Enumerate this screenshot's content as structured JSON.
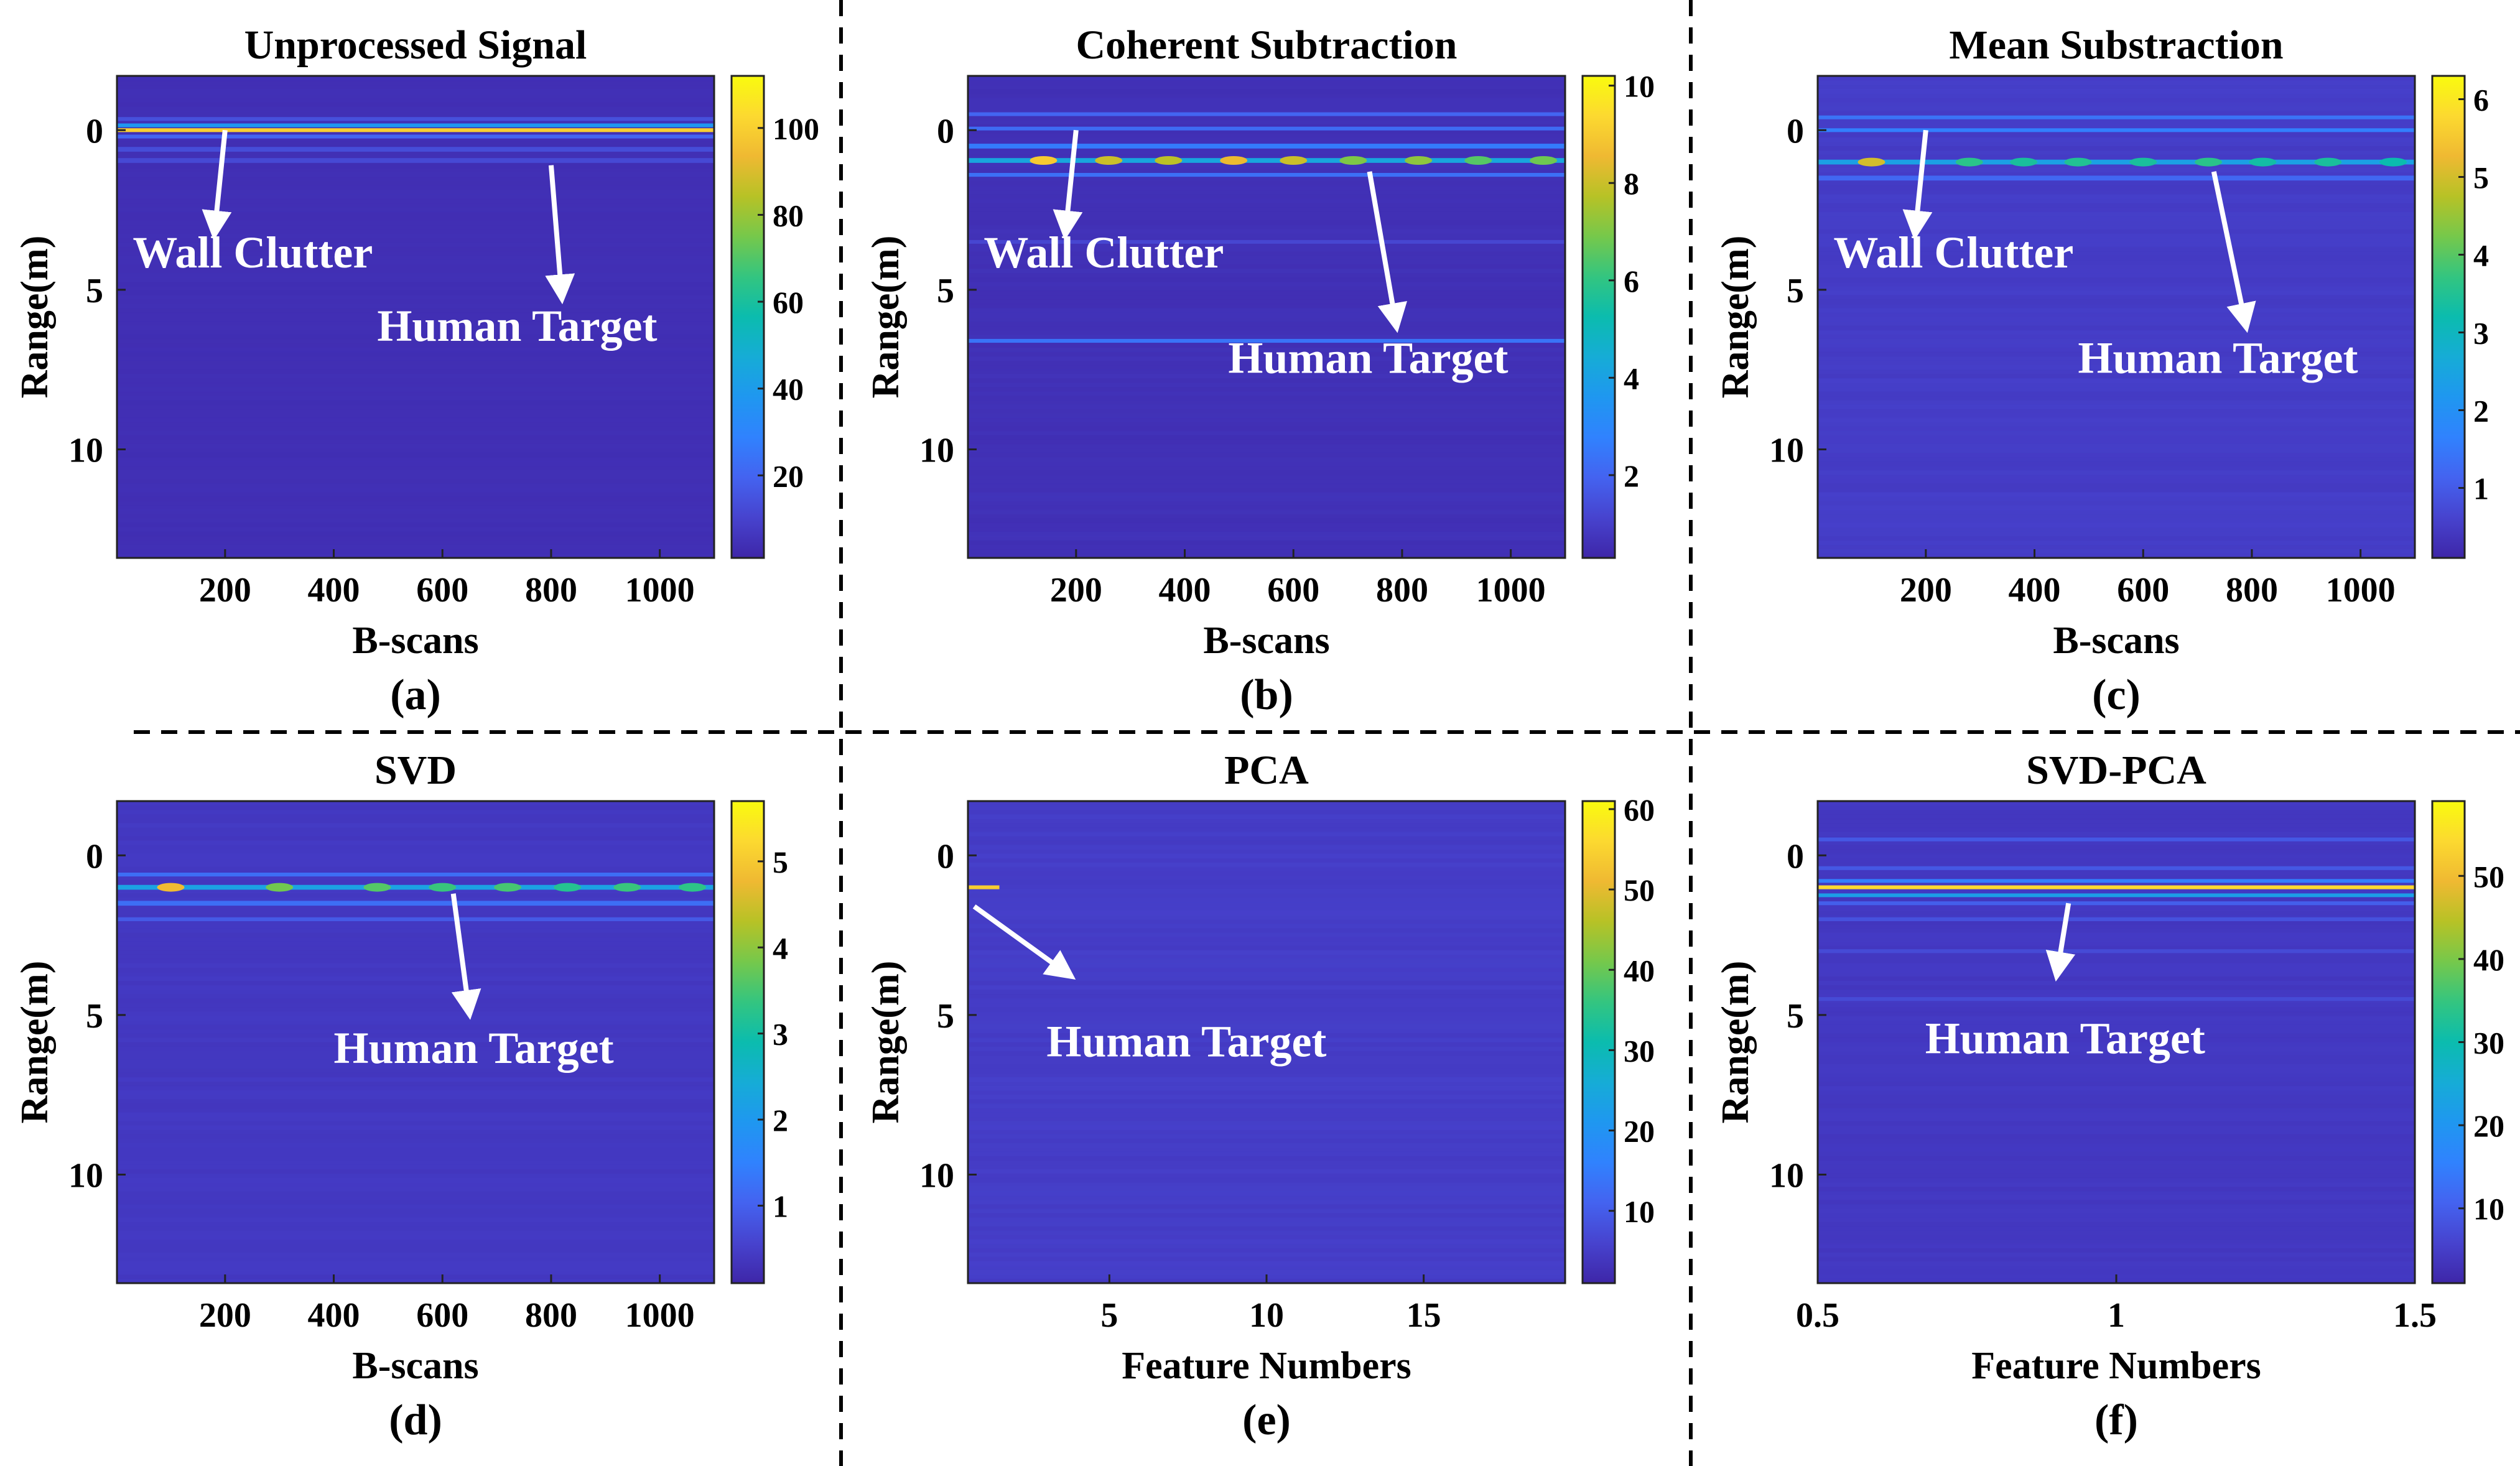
{
  "figure": {
    "separators": {
      "style": "dashed",
      "color": "#000000"
    }
  },
  "colormap": {
    "name": "parula",
    "stops": [
      "#3e26a8",
      "#4743ce",
      "#4463f0",
      "#3082fe",
      "#1f97f0",
      "#16acd6",
      "#0bbcae",
      "#33c580",
      "#76c84b",
      "#b7c226",
      "#efb932",
      "#fcd930",
      "#f9fb0e"
    ]
  },
  "chart_data": [
    {
      "id": "a",
      "panel_label": "(a)",
      "type": "heatmap",
      "title": "Unprocessed Signal",
      "xlabel": "B-scans",
      "ylabel": "Range(m)",
      "xlim": [
        1,
        1100
      ],
      "ylim": [
        -1.7,
        13.4
      ],
      "y_reversed": true,
      "xticks": [
        200,
        400,
        600,
        800,
        1000
      ],
      "yticks": [
        0,
        5,
        10
      ],
      "clim": [
        1,
        112
      ],
      "cbar_ticks": [
        20,
        40,
        60,
        80,
        100
      ],
      "background_value": 4,
      "bands": [
        {
          "range_m": -0.35,
          "value": 14,
          "thickness_m": 0.12
        },
        {
          "range_m": -0.15,
          "value": 38,
          "thickness_m": 0.12
        },
        {
          "range_m": 0.0,
          "value": 100,
          "thickness_m": 0.12
        },
        {
          "range_m": 0.2,
          "value": 20,
          "thickness_m": 0.12
        },
        {
          "range_m": 0.6,
          "value": 13,
          "thickness_m": 0.15
        },
        {
          "range_m": 0.95,
          "value": 12,
          "thickness_m": 0.15
        }
      ],
      "annotations": [
        {
          "text": "Wall Clutter",
          "tail": [
            200,
            0.0
          ],
          "head": [
            180,
            3.3
          ],
          "label_at": [
            30,
            4.3
          ]
        },
        {
          "text": "Human Target",
          "tail": [
            800,
            1.1
          ],
          "head": [
            820,
            5.3
          ],
          "label_at": [
            480,
            6.6
          ]
        }
      ]
    },
    {
      "id": "b",
      "panel_label": "(b)",
      "type": "heatmap",
      "title": "Coherent Subtraction",
      "xlabel": "B-scans",
      "ylabel": "Range(m)",
      "xlim": [
        1,
        1100
      ],
      "ylim": [
        -1.7,
        13.4
      ],
      "y_reversed": true,
      "xticks": [
        200,
        400,
        600,
        800,
        1000
      ],
      "yticks": [
        0,
        5,
        10
      ],
      "clim": [
        0.3,
        10.2
      ],
      "cbar_ticks": [
        2,
        4,
        6,
        8,
        10
      ],
      "background_value": 0.6,
      "bands": [
        {
          "range_m": -0.5,
          "value": 2.0,
          "thickness_m": 0.1
        },
        {
          "range_m": -0.05,
          "value": 2.2,
          "thickness_m": 0.1
        },
        {
          "range_m": 0.5,
          "value": 2.6,
          "thickness_m": 0.15
        },
        {
          "range_m": 0.95,
          "value": 4.2,
          "thickness_m": 0.15
        },
        {
          "range_m": 1.4,
          "value": 2.3,
          "thickness_m": 0.12
        },
        {
          "range_m": 3.5,
          "value": 1.2,
          "thickness_m": 0.08
        },
        {
          "range_m": 6.6,
          "value": 2.4,
          "thickness_m": 0.12
        }
      ],
      "hotspots": [
        {
          "x": 140,
          "range_m": 0.95,
          "value": 9.0
        },
        {
          "x": 260,
          "range_m": 0.95,
          "value": 8.0
        },
        {
          "x": 370,
          "range_m": 0.95,
          "value": 7.8
        },
        {
          "x": 490,
          "range_m": 0.95,
          "value": 8.5
        },
        {
          "x": 600,
          "range_m": 0.95,
          "value": 8.0
        },
        {
          "x": 710,
          "range_m": 0.95,
          "value": 7.0
        },
        {
          "x": 830,
          "range_m": 0.95,
          "value": 7.2
        },
        {
          "x": 940,
          "range_m": 0.95,
          "value": 6.5
        },
        {
          "x": 1060,
          "range_m": 0.95,
          "value": 6.8
        }
      ],
      "annotations": [
        {
          "text": "Wall Clutter",
          "tail": [
            200,
            0.0
          ],
          "head": [
            180,
            3.3
          ],
          "label_at": [
            30,
            4.3
          ]
        },
        {
          "text": "Human Target",
          "tail": [
            740,
            1.3
          ],
          "head": [
            790,
            6.2
          ],
          "label_at": [
            480,
            7.6
          ]
        }
      ]
    },
    {
      "id": "c",
      "panel_label": "(c)",
      "type": "heatmap",
      "title": "Mean Substraction",
      "xlabel": "B-scans",
      "ylabel": "Range(m)",
      "xlim": [
        1,
        1100
      ],
      "ylim": [
        -1.7,
        13.4
      ],
      "y_reversed": true,
      "xticks": [
        200,
        400,
        600,
        800,
        1000
      ],
      "yticks": [
        0,
        5,
        10
      ],
      "clim": [
        0.1,
        6.3
      ],
      "cbar_ticks": [
        1,
        2,
        3,
        4,
        5,
        6
      ],
      "background_value": 0.5,
      "bands": [
        {
          "range_m": -0.4,
          "value": 1.4,
          "thickness_m": 0.1
        },
        {
          "range_m": 0.0,
          "value": 1.6,
          "thickness_m": 0.1
        },
        {
          "range_m": 1.0,
          "value": 2.4,
          "thickness_m": 0.15
        },
        {
          "range_m": 1.5,
          "value": 1.2,
          "thickness_m": 0.15
        }
      ],
      "hotspots": [
        {
          "x": 100,
          "range_m": 1.0,
          "value": 5.0
        },
        {
          "x": 280,
          "range_m": 1.0,
          "value": 3.6
        },
        {
          "x": 380,
          "range_m": 1.0,
          "value": 3.4
        },
        {
          "x": 480,
          "range_m": 1.0,
          "value": 3.5
        },
        {
          "x": 600,
          "range_m": 1.0,
          "value": 3.4
        },
        {
          "x": 720,
          "range_m": 1.0,
          "value": 3.6
        },
        {
          "x": 820,
          "range_m": 1.0,
          "value": 3.3
        },
        {
          "x": 940,
          "range_m": 1.0,
          "value": 3.4
        },
        {
          "x": 1060,
          "range_m": 1.0,
          "value": 3.2
        }
      ],
      "annotations": [
        {
          "text": "Wall Clutter",
          "tail": [
            200,
            0.0
          ],
          "head": [
            180,
            3.3
          ],
          "label_at": [
            30,
            4.3
          ]
        },
        {
          "text": "Human Target",
          "tail": [
            730,
            1.3
          ],
          "head": [
            790,
            6.2
          ],
          "label_at": [
            480,
            7.6
          ]
        }
      ]
    },
    {
      "id": "d",
      "panel_label": "(d)",
      "type": "heatmap",
      "title": "SVD",
      "xlabel": "B-scans",
      "ylabel": "Range(m)",
      "xlim": [
        1,
        1100
      ],
      "ylim": [
        -1.7,
        13.4
      ],
      "y_reversed": true,
      "xticks": [
        200,
        400,
        600,
        800,
        1000
      ],
      "yticks": [
        0,
        5,
        10
      ],
      "clim": [
        0.1,
        5.7
      ],
      "cbar_ticks": [
        1,
        2,
        3,
        4,
        5
      ],
      "background_value": 0.4,
      "bands": [
        {
          "range_m": 0.6,
          "value": 1.2,
          "thickness_m": 0.12
        },
        {
          "range_m": 1.0,
          "value": 2.2,
          "thickness_m": 0.15
        },
        {
          "range_m": 1.5,
          "value": 1.2,
          "thickness_m": 0.15
        },
        {
          "range_m": 2.0,
          "value": 0.9,
          "thickness_m": 0.12
        }
      ],
      "hotspots": [
        {
          "x": 100,
          "range_m": 1.0,
          "value": 4.8
        },
        {
          "x": 300,
          "range_m": 1.0,
          "value": 3.8
        },
        {
          "x": 480,
          "range_m": 1.0,
          "value": 3.6
        },
        {
          "x": 600,
          "range_m": 1.0,
          "value": 3.4
        },
        {
          "x": 720,
          "range_m": 1.0,
          "value": 3.5
        },
        {
          "x": 830,
          "range_m": 1.0,
          "value": 3.2
        },
        {
          "x": 940,
          "range_m": 1.0,
          "value": 3.4
        },
        {
          "x": 1060,
          "range_m": 1.0,
          "value": 3.3
        }
      ],
      "annotations": [
        {
          "text": "Human Target",
          "tail": [
            620,
            1.2
          ],
          "head": [
            650,
            5.0
          ],
          "label_at": [
            400,
            6.5
          ]
        }
      ]
    },
    {
      "id": "e",
      "panel_label": "(e)",
      "type": "heatmap",
      "title": "PCA",
      "xlabel": "Feature Numbers",
      "ylabel": "Range(m)",
      "xlim": [
        0.5,
        19.5
      ],
      "ylim": [
        -1.7,
        13.4
      ],
      "y_reversed": true,
      "xticks": [
        5,
        10,
        15
      ],
      "yticks": [
        0,
        5,
        10
      ],
      "clim": [
        1,
        61
      ],
      "cbar_ticks": [
        10,
        20,
        30,
        40,
        50,
        60
      ],
      "background_value": 5,
      "bands": [
        {
          "range_m": 1.0,
          "value": 54,
          "thickness_m": 0.12,
          "x_from": 0.5,
          "x_to": 1.5
        }
      ],
      "annotations": [
        {
          "text": "Human Target",
          "tail": [
            0.7,
            1.6
          ],
          "head": [
            3.8,
            3.8
          ],
          "label_at": [
            3.0,
            6.3
          ]
        }
      ]
    },
    {
      "id": "f",
      "panel_label": "(f)",
      "type": "heatmap",
      "title": "SVD-PCA",
      "xlabel": "Feature Numbers",
      "ylabel": "Range(m)",
      "xlim": [
        0.5,
        1.5
      ],
      "ylim": [
        -1.7,
        13.4
      ],
      "y_reversed": true,
      "xticks": [
        0.5,
        1,
        1.5
      ],
      "yticks": [
        0,
        5,
        10
      ],
      "clim": [
        1,
        59
      ],
      "cbar_ticks": [
        10,
        20,
        30,
        40,
        50
      ],
      "background_value": 4,
      "bands": [
        {
          "range_m": -0.5,
          "value": 9,
          "thickness_m": 0.12
        },
        {
          "range_m": 0.4,
          "value": 9,
          "thickness_m": 0.12
        },
        {
          "range_m": 0.8,
          "value": 15,
          "thickness_m": 0.1
        },
        {
          "range_m": 1.0,
          "value": 54,
          "thickness_m": 0.12
        },
        {
          "range_m": 1.25,
          "value": 22,
          "thickness_m": 0.1
        },
        {
          "range_m": 1.5,
          "value": 10,
          "thickness_m": 0.12
        },
        {
          "range_m": 2.0,
          "value": 8,
          "thickness_m": 0.12
        },
        {
          "range_m": 3.0,
          "value": 7,
          "thickness_m": 0.12
        },
        {
          "range_m": 4.5,
          "value": 7,
          "thickness_m": 0.12
        }
      ],
      "annotations": [
        {
          "text": "Human Target",
          "tail": [
            0.92,
            1.5
          ],
          "head": [
            0.9,
            3.8
          ],
          "label_at": [
            0.68,
            6.2
          ]
        }
      ]
    }
  ]
}
